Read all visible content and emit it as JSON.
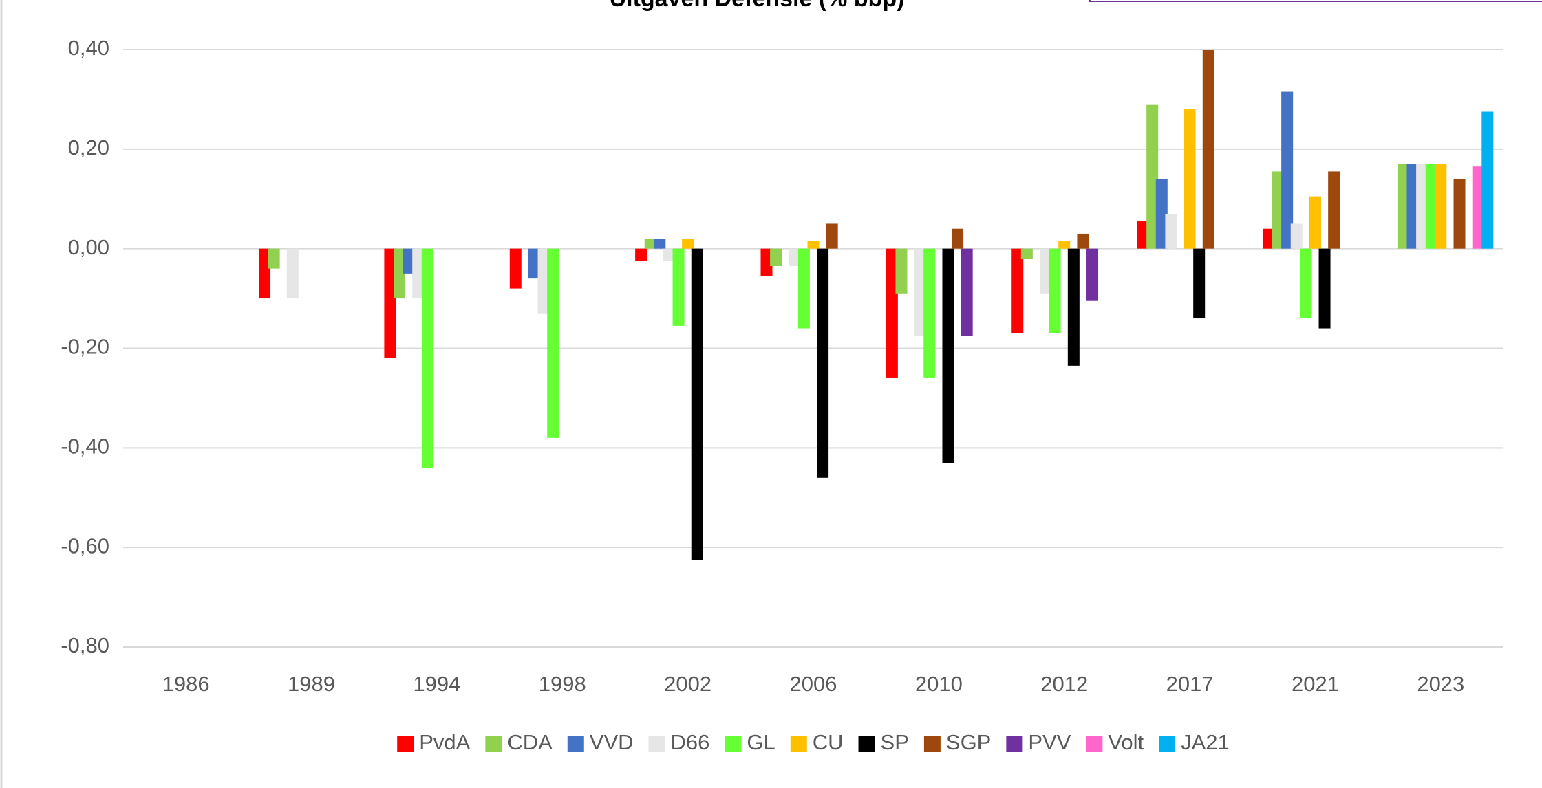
{
  "chart_data": {
    "type": "bar",
    "title": "Uitgaven Defensie (% bbp)",
    "categories": [
      "1986",
      "1989",
      "1994",
      "1998",
      "2002",
      "2006",
      "2010",
      "2012",
      "2017",
      "2021",
      "2023"
    ],
    "series": [
      {
        "name": "PvdA",
        "color": "#ff0000",
        "values": [
          null,
          -0.1,
          -0.22,
          -0.08,
          -0.025,
          -0.055,
          -0.26,
          -0.17,
          0.055,
          0.04,
          null
        ]
      },
      {
        "name": "CDA",
        "color": "#92d050",
        "values": [
          null,
          -0.04,
          -0.1,
          null,
          0.02,
          -0.035,
          -0.09,
          -0.02,
          0.29,
          0.155,
          0.17
        ]
      },
      {
        "name": "VVD",
        "color": "#4472c4",
        "values": [
          null,
          null,
          -0.05,
          -0.06,
          0.02,
          null,
          null,
          null,
          0.14,
          0.315,
          0.17
        ]
      },
      {
        "name": "D66",
        "color": "#e7e6e6",
        "values": [
          null,
          -0.1,
          -0.1,
          -0.13,
          -0.025,
          -0.035,
          -0.175,
          -0.09,
          0.07,
          0.05,
          0.17
        ]
      },
      {
        "name": "GL",
        "color": "#66ff33",
        "values": [
          null,
          null,
          -0.44,
          -0.38,
          -0.155,
          -0.16,
          -0.26,
          -0.17,
          null,
          -0.14,
          0.17
        ]
      },
      {
        "name": "CU",
        "color": "#ffc000",
        "values": [
          null,
          null,
          null,
          null,
          0.02,
          0.015,
          null,
          0.015,
          0.28,
          0.105,
          0.17
        ]
      },
      {
        "name": "SP",
        "color": "#000000",
        "values": [
          null,
          null,
          null,
          null,
          -0.625,
          -0.46,
          -0.43,
          -0.235,
          -0.14,
          -0.16,
          null
        ]
      },
      {
        "name": "SGP",
        "color": "#9e480e",
        "values": [
          null,
          null,
          null,
          null,
          null,
          0.05,
          0.04,
          0.03,
          0.4,
          0.155,
          0.14
        ]
      },
      {
        "name": "PVV",
        "color": "#7030a0",
        "values": [
          null,
          null,
          null,
          null,
          null,
          null,
          -0.175,
          -0.105,
          null,
          null,
          null
        ]
      },
      {
        "name": "Volt",
        "color": "#ff66cc",
        "values": [
          null,
          null,
          null,
          null,
          null,
          null,
          null,
          null,
          null,
          null,
          0.165
        ]
      },
      {
        "name": "JA21",
        "color": "#00b0f0",
        "values": [
          null,
          null,
          null,
          null,
          null,
          null,
          null,
          null,
          null,
          null,
          0.275
        ]
      }
    ],
    "ylim": [
      -0.8,
      0.4
    ],
    "yticks": [
      {
        "value": 0.4,
        "label": "0,40"
      },
      {
        "value": 0.2,
        "label": "0,20"
      },
      {
        "value": 0,
        "label": "0,00"
      },
      {
        "value": -0.2,
        "label": "-0,20"
      },
      {
        "value": -0.4,
        "label": "-0,40"
      },
      {
        "value": -0.6,
        "label": "-0,60"
      },
      {
        "value": -0.8,
        "label": "-0,80"
      }
    ],
    "grid": true,
    "legend": "bottom"
  }
}
